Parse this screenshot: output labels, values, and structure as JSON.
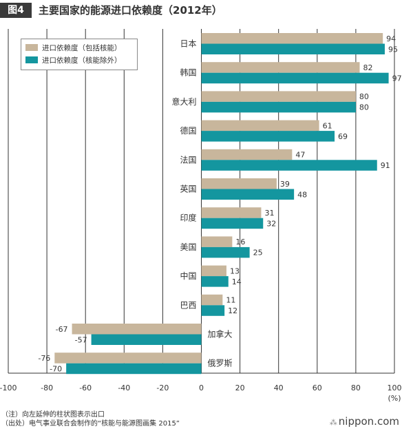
{
  "figure": {
    "badge": "图4",
    "title": "主要国家的能源进口依赖度（2012年）"
  },
  "legend": {
    "items": [
      {
        "label": "进口依赖度（包括核能）",
        "color": "#c8b69c"
      },
      {
        "label": "进口依赖度（核能除外）",
        "color": "#14969f"
      }
    ]
  },
  "notes": {
    "note": "（注）向左延伸的柱状图表示出口",
    "source": "（出处）电气事业联合会制作的“核能与能源图画集 2015”"
  },
  "logo": {
    "text": "nippon.com",
    "mark": "⁂"
  },
  "chart_data": {
    "type": "bar",
    "orientation": "horizontal",
    "categories": [
      "日本",
      "韩国",
      "意大利",
      "德国",
      "法国",
      "英国",
      "印度",
      "美国",
      "中国",
      "巴西",
      "加拿大",
      "俄罗斯"
    ],
    "series": [
      {
        "name": "进口依赖度（包括核能）",
        "color": "#c8b69c",
        "values": [
          94,
          82,
          80,
          61,
          47,
          39,
          31,
          16,
          13,
          11,
          -67,
          -76
        ]
      },
      {
        "name": "进口依赖度（核能除外）",
        "color": "#14969f",
        "values": [
          95,
          97,
          80,
          69,
          91,
          48,
          32,
          25,
          14,
          12,
          -57,
          -70
        ]
      }
    ],
    "xlim": [
      -100,
      100
    ],
    "xticks": [
      -100,
      -80,
      -60,
      -40,
      -20,
      0,
      20,
      40,
      60,
      80,
      100
    ],
    "unit": "(%)",
    "grid": true
  }
}
